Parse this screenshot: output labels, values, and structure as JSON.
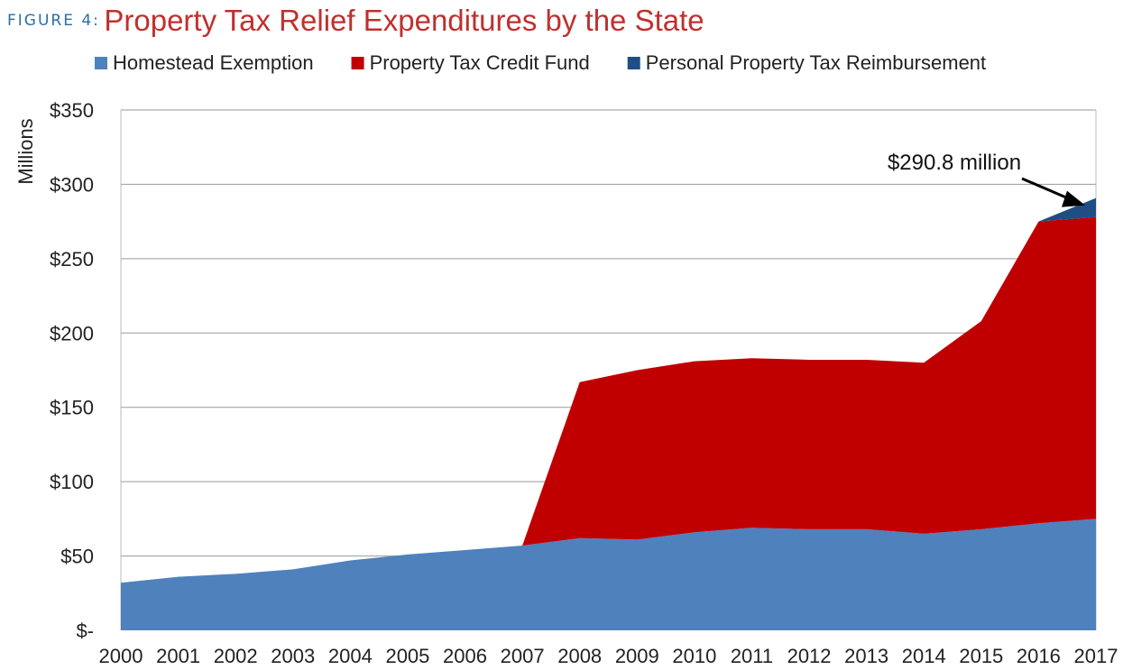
{
  "figure_label": "FIGURE 4:",
  "title": "Property Tax Relief Expenditures by the State",
  "colors": {
    "homestead": "#4f81bd",
    "credit_fund": "#c00000",
    "personal_property": "#1f4e84",
    "grid": "#9a9a9a",
    "text": "#222222",
    "figure_label": "#2a6ea6",
    "title": "#c0302e"
  },
  "chart_data": {
    "type": "area",
    "stacked": true,
    "title": "Property Tax Relief Expenditures by the State",
    "ylabel": "Millions",
    "xlabel": "",
    "ylim": [
      0,
      350
    ],
    "yticks": [
      0,
      50,
      100,
      150,
      200,
      250,
      300,
      350
    ],
    "ytick_labels": [
      "$-",
      "$50",
      "$100",
      "$150",
      "$200",
      "$250",
      "$300",
      "$350"
    ],
    "grid": true,
    "legend_position": "top",
    "x": [
      "2000",
      "2001",
      "2002",
      "2003",
      "2004",
      "2005",
      "2006",
      "2007",
      "2008",
      "2009",
      "2010",
      "2011",
      "2012",
      "2013",
      "2014",
      "2015",
      "2016",
      "2017"
    ],
    "series": [
      {
        "name": "Homestead Exemption",
        "color": "#4f81bd",
        "values": [
          32,
          36,
          38,
          41,
          47,
          51,
          54,
          57,
          62,
          61,
          66,
          69,
          68,
          68,
          65,
          68,
          72,
          75
        ]
      },
      {
        "name": "Property Tax Credit Fund",
        "color": "#c00000",
        "values": [
          0,
          0,
          0,
          0,
          0,
          0,
          0,
          0,
          105,
          114,
          115,
          114,
          114,
          114,
          115,
          140,
          203,
          203
        ]
      },
      {
        "name": "Personal Property Tax Reimbursement",
        "color": "#1f4e84",
        "values": [
          0,
          0,
          0,
          0,
          0,
          0,
          0,
          0,
          0,
          0,
          0,
          0,
          0,
          0,
          0,
          0,
          0,
          12.8
        ]
      }
    ],
    "annotations": [
      {
        "text": "$290.8 million",
        "x": "2017",
        "y": 290.8
      }
    ]
  }
}
